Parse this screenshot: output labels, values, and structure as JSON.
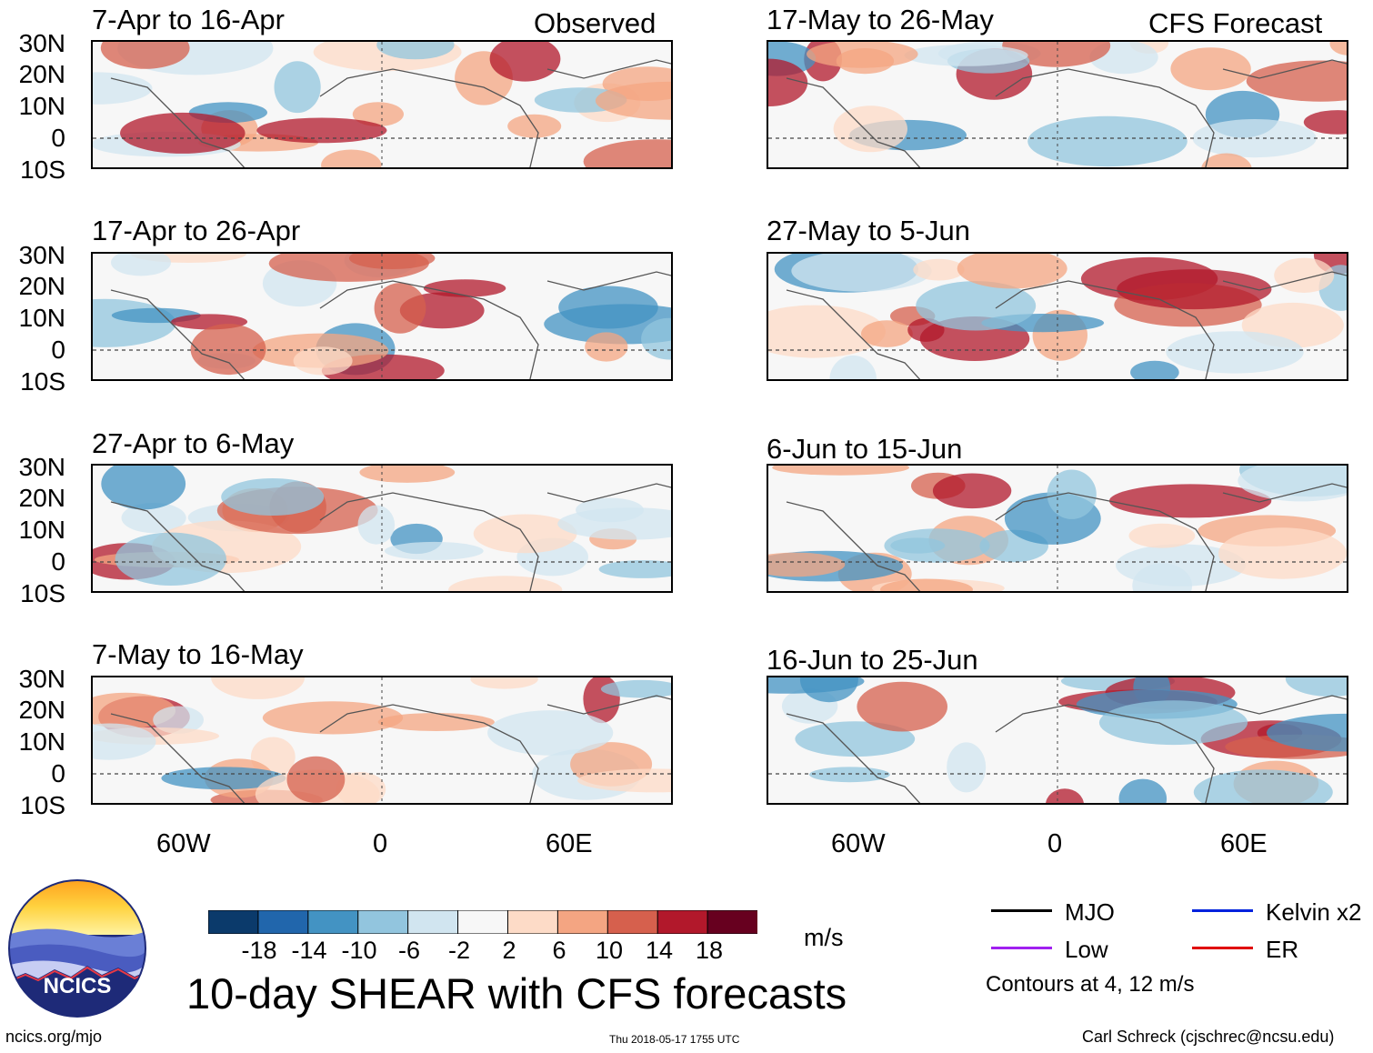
{
  "headers": {
    "observed": "Observed",
    "forecast": "CFS Forecast"
  },
  "left_panels": [
    {
      "title": "7-Apr to 16-Apr"
    },
    {
      "title": "17-Apr to 26-Apr"
    },
    {
      "title": "27-Apr to 6-May"
    },
    {
      "title": "7-May to 16-May"
    }
  ],
  "right_panels": [
    {
      "title": "17-May to 26-May"
    },
    {
      "title": "27-May to 5-Jun"
    },
    {
      "title": "6-Jun to 15-Jun"
    },
    {
      "title": "16-Jun to 25-Jun"
    }
  ],
  "lat_labels": [
    "30N",
    "20N",
    "10N",
    "0",
    "10S"
  ],
  "lon_labels": [
    "60W",
    "0",
    "60E"
  ],
  "colorbar": {
    "ticks": [
      "-18",
      "-14",
      "-10",
      "-6",
      "-2",
      "2",
      "6",
      "10",
      "14",
      "18"
    ],
    "colors": [
      "#0b3a6b",
      "#2166ac",
      "#4393c3",
      "#92c5de",
      "#d1e5f0",
      "#f7f7f7",
      "#fddbc7",
      "#f4a582",
      "#d6604d",
      "#b2182b",
      "#67001f"
    ],
    "unit": "m/s"
  },
  "legend": {
    "items": [
      {
        "label": "MJO",
        "color": "#000000"
      },
      {
        "label": "Kelvin x2",
        "color": "#0022dd"
      },
      {
        "label": "Low",
        "color": "#a020f0"
      },
      {
        "label": "ER",
        "color": "#e00000"
      }
    ],
    "note": "Contours at 4, 12 m/s"
  },
  "logo": {
    "text": "NCICS"
  },
  "main_title": "10-day SHEAR with CFS forecasts",
  "footer": {
    "url": "ncics.org/mjo",
    "timestamp": "Thu 2018-05-17 1755 UTC",
    "author": "Carl Schreck (cjschrec@ncsu.edu)"
  }
}
